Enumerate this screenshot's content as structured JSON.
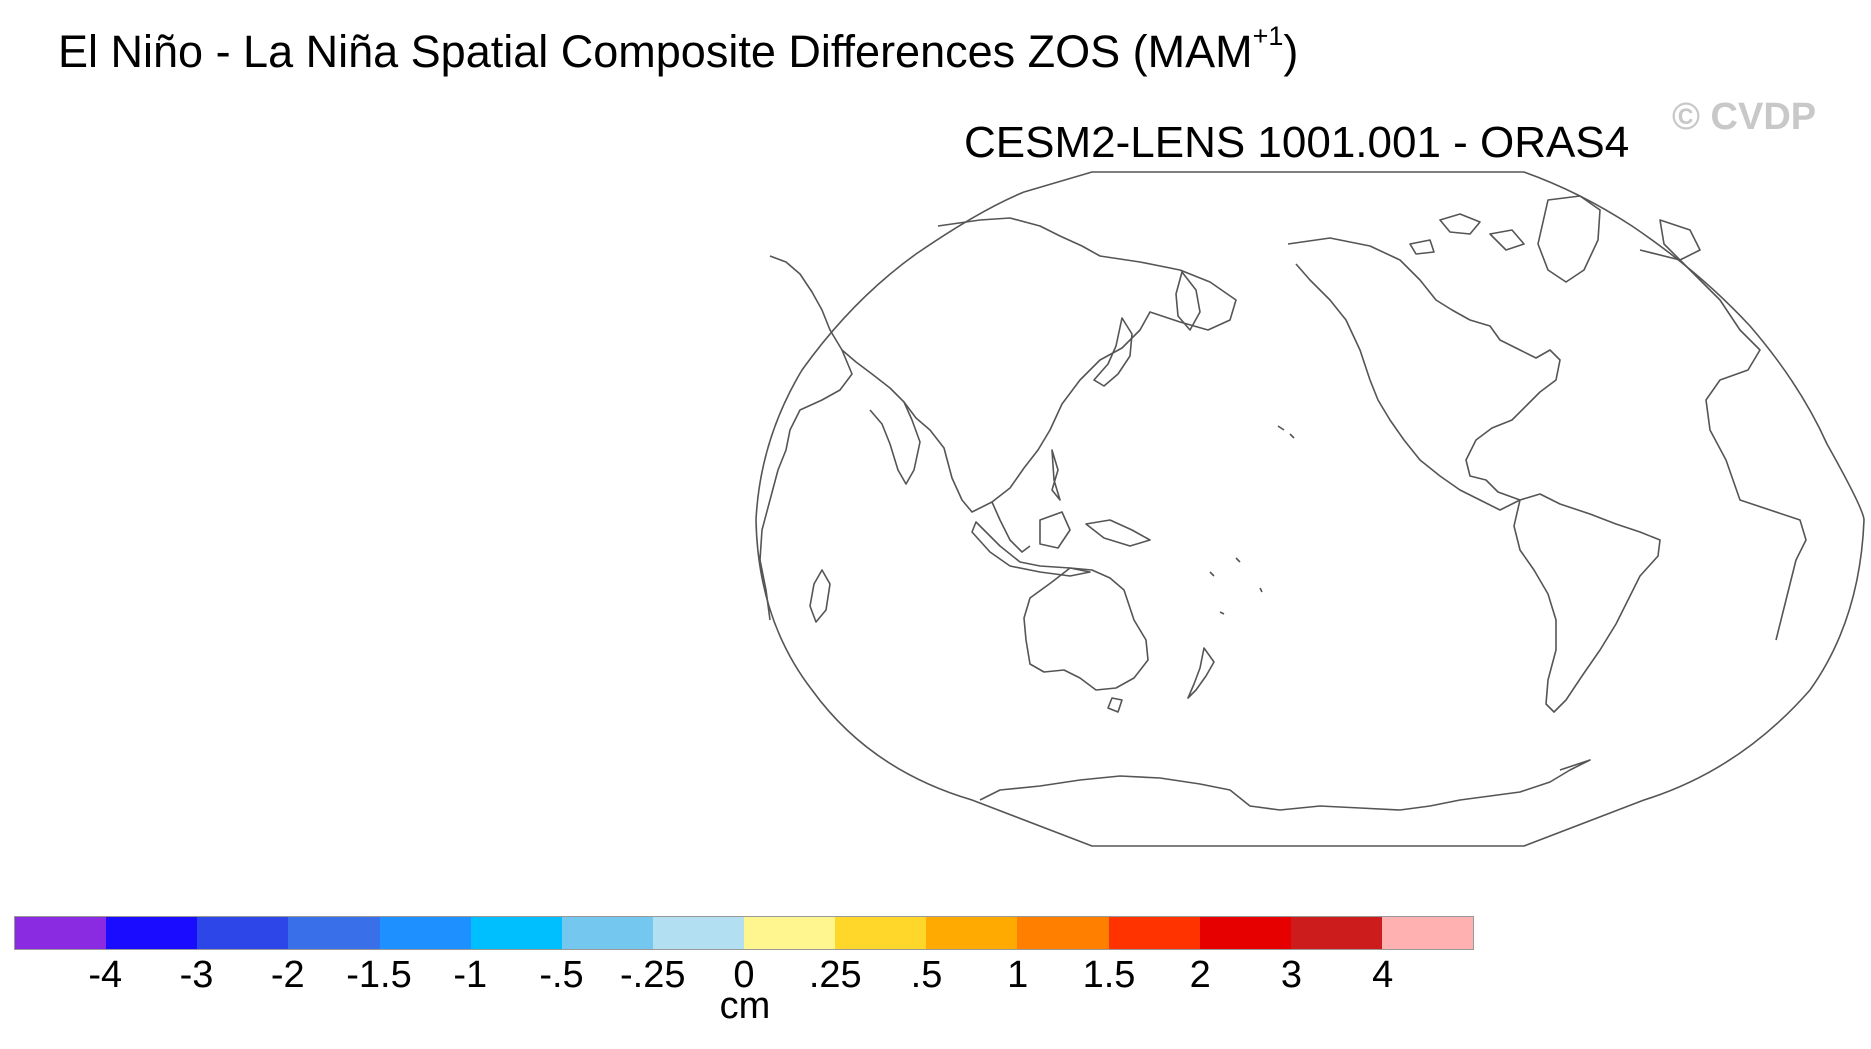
{
  "title": {
    "main": "El Niño - La Niña Spatial Composite Differences ZOS (MAM",
    "superscript": "+1",
    "close": ")"
  },
  "subtitle": "CESM2-LENS 1001.001 - ORAS4",
  "watermark": "© CVDP",
  "colorbar": {
    "units": "cm",
    "labels": [
      "-4",
      "-3",
      "-2",
      "-1.5",
      "-1",
      "-.5",
      "-.25",
      "0",
      ".25",
      ".5",
      "1",
      "1.5",
      "2",
      "3",
      "4"
    ],
    "colors": [
      "#8a2be2",
      "#1a0dff",
      "#2d46e8",
      "#3a6fea",
      "#1e90ff",
      "#00bfff",
      "#74c8f0",
      "#b2dff2",
      "#fff68f",
      "#ffd72a",
      "#ffaa00",
      "#ff7f00",
      "#ff3300",
      "#e60000",
      "#cc1c1c",
      "#ffb0b0"
    ]
  },
  "map": {
    "projection": "robinson",
    "central_longitude": "180",
    "field": "no data shaded"
  }
}
